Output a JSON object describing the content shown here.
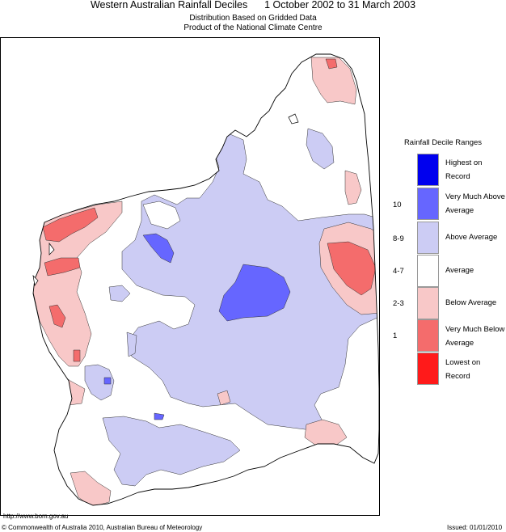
{
  "title": "Western Australian Rainfall Deciles      1 October 2002 to 31 March 2003",
  "subtitles": [
    "Distribution Based on Gridded Data",
    "Product of the National Climate Centre"
  ],
  "colors": {
    "highest": "#0000ee",
    "very_much_above": "#6666ff",
    "above": "#ccccf4",
    "average": "#ffffff",
    "below": "#f8c8c8",
    "very_much_below": "#f46c6c",
    "lowest": "#ff1a1a",
    "coast": "#000000"
  },
  "legend": {
    "title": "Rainfall Decile Ranges",
    "items": [
      {
        "label": "Highest on Record",
        "code": "",
        "color": "#0000ee"
      },
      {
        "label": "Very Much Above Average",
        "code": "10",
        "color": "#6666ff"
      },
      {
        "label": "Above Average",
        "code": "8-9",
        "color": "#ccccf4"
      },
      {
        "label": "Average",
        "code": "4-7",
        "color": "#ffffff"
      },
      {
        "label": "Below Average",
        "code": "2-3",
        "color": "#f8c8c8"
      },
      {
        "label": "Very Much Below Average",
        "code": "1",
        "color": "#f46c6c"
      },
      {
        "label": "Lowest on Record",
        "code": "",
        "color": "#ff1a1a"
      }
    ]
  },
  "footer": {
    "url": "http://www.bom.gov.au",
    "copyright": "© Commonwealth of Australia 2010, Australian Bureau of Meteorology",
    "issued": "Issued: 01/01/2010"
  }
}
